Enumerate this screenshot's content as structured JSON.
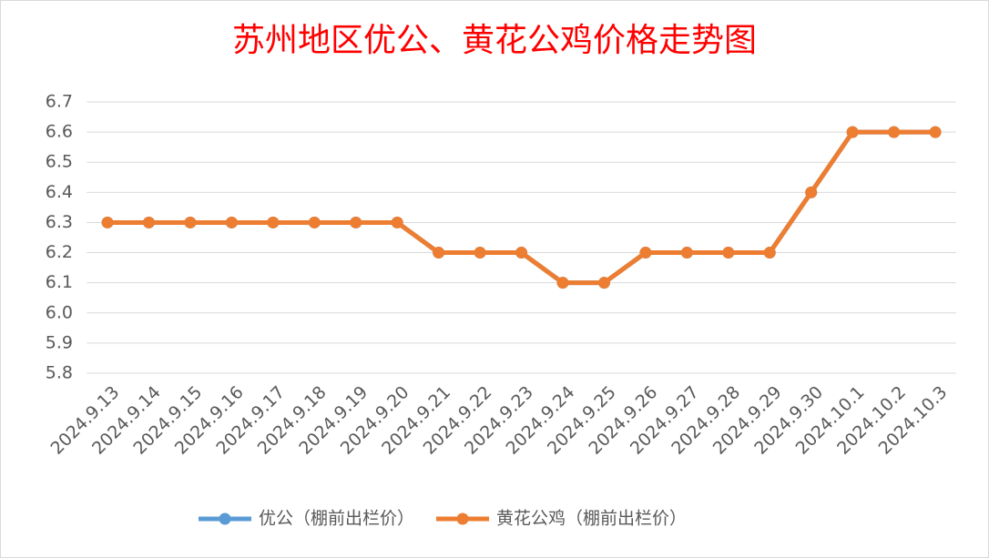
{
  "chart_data": {
    "type": "line",
    "title": "苏州地区优公、黄花公鸡价格走势图",
    "categories": [
      "2024.9.13",
      "2024.9.14",
      "2024.9.15",
      "2024.9.16",
      "2024.9.17",
      "2024.9.18",
      "2024.9.19",
      "2024.9.20",
      "2024.9.21",
      "2024.9.22",
      "2024.9.23",
      "2024.9.24",
      "2024.9.25",
      "2024.9.26",
      "2024.9.27",
      "2024.9.28",
      "2024.9.29",
      "2024.9.30",
      "2024.10.1",
      "2024.10.2",
      "2024.10.3"
    ],
    "series": [
      {
        "name": "优公（棚前出栏价）",
        "color": "#5b9bd5",
        "values": [
          6.3,
          6.3,
          6.3,
          6.3,
          6.3,
          6.3,
          6.3,
          6.3,
          6.2,
          6.2,
          6.2,
          6.1,
          6.1,
          6.2,
          6.2,
          6.2,
          6.2,
          6.4,
          6.6,
          6.6,
          6.6
        ]
      },
      {
        "name": "黄花公鸡（棚前出栏价）",
        "color": "#ed7d31",
        "values": [
          6.3,
          6.3,
          6.3,
          6.3,
          6.3,
          6.3,
          6.3,
          6.3,
          6.2,
          6.2,
          6.2,
          6.1,
          6.1,
          6.2,
          6.2,
          6.2,
          6.2,
          6.4,
          6.6,
          6.6,
          6.6
        ]
      }
    ],
    "ylim": [
      5.8,
      6.7
    ],
    "yticks": [
      5.8,
      5.9,
      {
        "value": 6,
        "label": "6.0"
      },
      6.1,
      6.2,
      6.3,
      6.4,
      6.5,
      6.6,
      6.7
    ],
    "grid": true,
    "legend": "bottom"
  }
}
